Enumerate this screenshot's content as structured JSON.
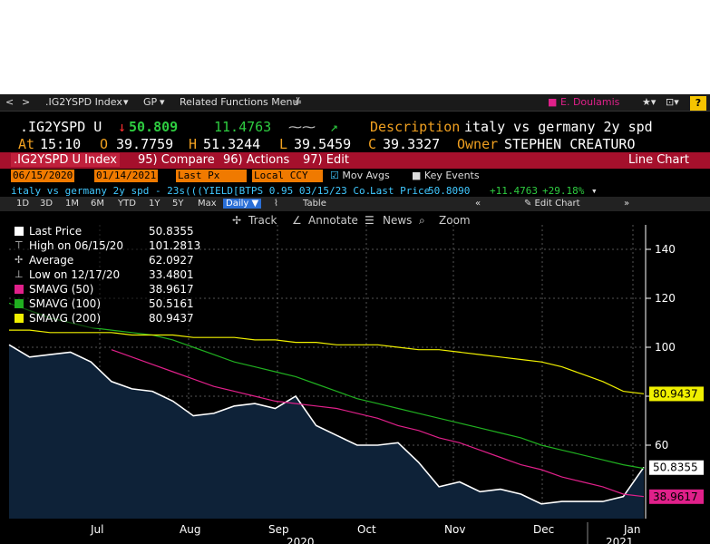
{
  "toolbar": {
    "nav_back": "<",
    "nav_fwd": ">",
    "security": ".IG2YSPD Index",
    "function": "GP",
    "related": "Related Functions Menu",
    "user": "E. Doulamis",
    "help": "?"
  },
  "header": {
    "ticker": ".IG2YSPD U",
    "last": "50.809",
    "change": "11.4763",
    "description_label": "Description",
    "description": "italy vs germany 2y spd",
    "at_label": "At",
    "time": "15:10",
    "open_label": "O",
    "open": "39.7759",
    "high_label": "H",
    "high": "51.3244",
    "low_label": "L",
    "low": "39.5459",
    "close_label": "C",
    "close": "39.3327",
    "owner_label": "Owner",
    "owner": "STEPHEN CREATURO"
  },
  "bar": {
    "index": ".IG2YSPD U Index",
    "compare": "95) Compare",
    "actions": "96) Actions",
    "edit": "97) Edit",
    "chart_type": "Line Chart"
  },
  "controls": {
    "start_date": "06/15/2020",
    "end_date": "01/14/2021",
    "field": "Last Px",
    "currency": "Local CCY",
    "mov_avgs": "Mov Avgs",
    "key_events": "Key Events"
  },
  "series_row": {
    "name": "italy vs germany 2y spd - 23s",
    "formula": "(((YIELD[BTPS 0.95 03/15/23 Co...",
    "lp_label": "Last Price",
    "lp_value": "50.8090",
    "chg": "+11.4763",
    "pct": "+29.18%"
  },
  "periods": [
    "1D",
    "3D",
    "1M",
    "6M",
    "YTD",
    "1Y",
    "5Y",
    "Max"
  ],
  "freq": "Daily",
  "table_label": "Table",
  "edit_chart": "Edit Chart",
  "tools": {
    "track": "Track",
    "annotate": "Annotate",
    "news": "News",
    "zoom": "Zoom"
  },
  "legend": [
    {
      "name": "Last Price",
      "value": "50.8355",
      "color": "#ffffff"
    },
    {
      "name": "High on 06/15/20",
      "value": "101.2813",
      "color": "#ffffff"
    },
    {
      "name": "Average",
      "value": "62.0927",
      "color": "#ffffff"
    },
    {
      "name": "Low on 12/17/20",
      "value": "33.4801",
      "color": "#ffffff"
    },
    {
      "name": "SMAVG (50)",
      "value": "38.9617",
      "color": "#e0208a"
    },
    {
      "name": "SMAVG (100)",
      "value": "50.5161",
      "color": "#20b020"
    },
    {
      "name": "SMAVG (200)",
      "value": "80.9437",
      "color": "#f0f000"
    }
  ],
  "chart_data": {
    "type": "area",
    "x_ticks": [
      "Jul",
      "Aug",
      "Sep",
      "Oct",
      "Nov",
      "Dec",
      "Jan"
    ],
    "year_labels": [
      "2020",
      "2021"
    ],
    "y_ticks": [
      60,
      80,
      100,
      120,
      140
    ],
    "ylim": [
      30,
      150
    ],
    "grid": true,
    "price_labels": [
      {
        "value": 80.9437,
        "text": "80.9437",
        "color": "#f0f000"
      },
      {
        "value": 50.8355,
        "text": "50.8355",
        "color": "#ffffff"
      },
      {
        "value": 38.9617,
        "text": "38.9617",
        "color": "#e0208a"
      }
    ],
    "x_dates": [
      "06-15",
      "06-22",
      "06-29",
      "07-06",
      "07-13",
      "07-20",
      "07-27",
      "08-03",
      "08-10",
      "08-17",
      "08-24",
      "08-31",
      "09-07",
      "09-14",
      "09-21",
      "09-28",
      "10-05",
      "10-12",
      "10-19",
      "10-26",
      "11-02",
      "11-09",
      "11-16",
      "11-23",
      "11-30",
      "12-07",
      "12-14",
      "12-21",
      "12-28",
      "01-04",
      "01-11",
      "01-14"
    ],
    "series": [
      {
        "name": "Last Price",
        "color": "#ffffff",
        "values": [
          101,
          96,
          97,
          98,
          94,
          86,
          83,
          82,
          78,
          72,
          73,
          76,
          77,
          75,
          80,
          68,
          64,
          60,
          60,
          61,
          53,
          43,
          45,
          41,
          42,
          40,
          36,
          37,
          37,
          37,
          39,
          51
        ]
      },
      {
        "name": "SMAVG (50)",
        "color": "#e0208a",
        "values": [
          null,
          null,
          null,
          null,
          null,
          99,
          96,
          93,
          90,
          87,
          84,
          82,
          80,
          78,
          77,
          76,
          75,
          73,
          71,
          68,
          66,
          63,
          61,
          58,
          55,
          52,
          50,
          47,
          45,
          43,
          40,
          39
        ]
      },
      {
        "name": "SMAVG (100)",
        "color": "#20b020",
        "values": [
          118,
          115,
          112,
          110,
          108,
          107,
          106,
          105,
          103,
          100,
          97,
          94,
          92,
          90,
          88,
          85,
          82,
          79,
          77,
          75,
          73,
          71,
          69,
          67,
          65,
          63,
          60,
          58,
          56,
          54,
          52,
          50.5
        ]
      },
      {
        "name": "SMAVG (200)",
        "color": "#f0f000",
        "values": [
          107,
          107,
          106,
          106,
          106,
          106,
          105,
          105,
          105,
          104,
          104,
          104,
          103,
          103,
          102,
          102,
          101,
          101,
          101,
          100,
          99,
          99,
          98,
          97,
          96,
          95,
          94,
          92,
          89,
          86,
          82,
          81
        ]
      }
    ]
  }
}
